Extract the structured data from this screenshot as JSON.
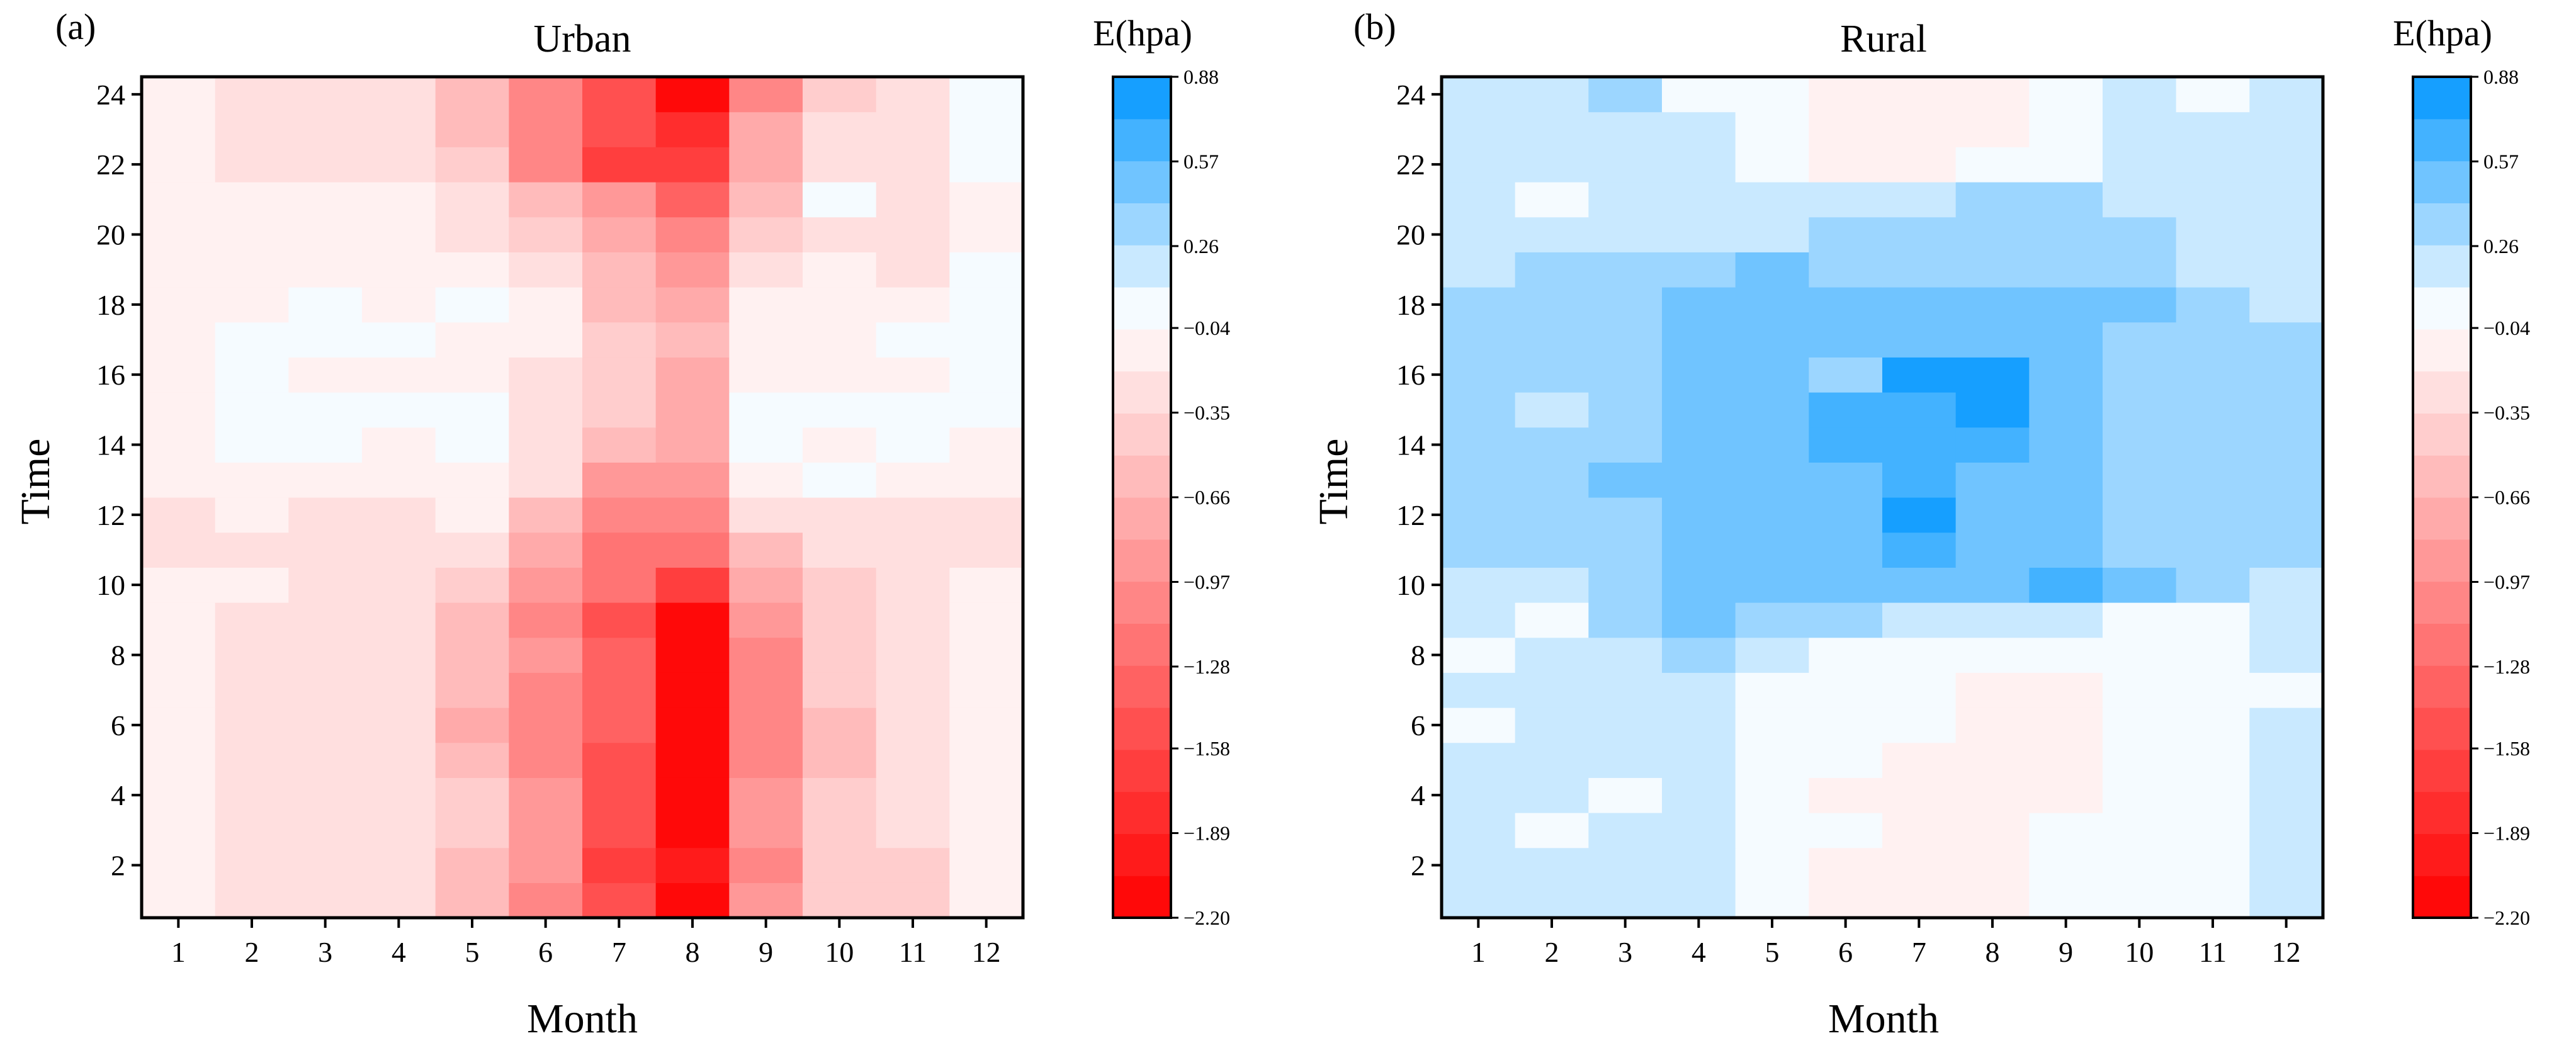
{
  "chart_data": [
    {
      "type": "heatmap",
      "panel_label": "(a)",
      "title": "Urban",
      "xlabel": "Month",
      "ylabel": "Time",
      "x_categories": [
        1,
        2,
        3,
        4,
        5,
        6,
        7,
        8,
        9,
        10,
        11,
        12
      ],
      "y_range": [
        0.5,
        24.5
      ],
      "y_ticks": [
        2,
        4,
        6,
        8,
        10,
        12,
        14,
        16,
        18,
        20,
        22,
        24
      ],
      "colorbar": {
        "title": "E(hpa)",
        "range": [
          -2.2,
          0.88
        ],
        "tick_values": [
          0.88,
          0.57,
          0.26,
          -0.04,
          -0.35,
          -0.66,
          -0.97,
          -1.28,
          -1.58,
          -1.89,
          -2.2
        ],
        "tick_labels": [
          "0.88",
          "0.57",
          "0.26",
          "−0.04",
          "−0.35",
          "−0.66",
          "−0.97",
          "−1.28",
          "−1.58",
          "−1.89",
          "−2.20"
        ],
        "low_color": "#ff0000",
        "mid_color": "#ffffff",
        "high_color": "#0096ff"
      },
      "z_note": "rows are hours 1..24, columns are months 1..12",
      "z": [
        [
          -0.15,
          -0.2,
          -0.3,
          -0.35,
          -0.6,
          -1.0,
          -1.5,
          -2.1,
          -0.9,
          -0.5,
          -0.4,
          -0.1
        ],
        [
          -0.15,
          -0.2,
          -0.25,
          -0.35,
          -0.55,
          -0.95,
          -1.6,
          -2.0,
          -1.0,
          -0.5,
          -0.4,
          -0.1
        ],
        [
          -0.15,
          -0.2,
          -0.25,
          -0.35,
          -0.5,
          -0.9,
          -1.55,
          -2.05,
          -0.95,
          -0.45,
          -0.35,
          -0.1
        ],
        [
          -0.15,
          -0.2,
          -0.25,
          -0.35,
          -0.5,
          -0.95,
          -1.5,
          -2.2,
          -0.95,
          -0.45,
          -0.35,
          -0.1
        ],
        [
          -0.15,
          -0.2,
          -0.25,
          -0.3,
          -0.65,
          -1.0,
          -1.45,
          -2.1,
          -1.0,
          -0.55,
          -0.35,
          -0.1
        ],
        [
          -0.15,
          -0.2,
          -0.25,
          -0.3,
          -0.7,
          -1.0,
          -1.4,
          -2.05,
          -1.0,
          -0.55,
          -0.35,
          -0.1
        ],
        [
          -0.15,
          -0.2,
          -0.25,
          -0.3,
          -0.65,
          -1.0,
          -1.4,
          -2.1,
          -1.0,
          -0.5,
          -0.35,
          -0.1
        ],
        [
          -0.15,
          -0.2,
          -0.25,
          -0.3,
          -0.55,
          -0.95,
          -1.35,
          -2.15,
          -1.0,
          -0.5,
          -0.35,
          -0.1
        ],
        [
          -0.15,
          -0.2,
          -0.25,
          -0.3,
          -0.6,
          -1.05,
          -1.5,
          -2.1,
          -0.95,
          -0.5,
          -0.3,
          -0.05
        ],
        [
          -0.15,
          -0.15,
          -0.2,
          -0.25,
          -0.4,
          -0.85,
          -1.2,
          -1.6,
          -0.7,
          -0.4,
          -0.3,
          -0.1
        ],
        [
          -0.2,
          -0.2,
          -0.2,
          -0.3,
          -0.25,
          -0.7,
          -1.15,
          -1.2,
          -0.55,
          -0.25,
          -0.25,
          -0.2
        ],
        [
          -0.25,
          -0.15,
          -0.2,
          -0.2,
          -0.1,
          -0.55,
          -1.05,
          -1.1,
          -0.2,
          -0.2,
          -0.2,
          -0.2
        ],
        [
          -0.15,
          -0.1,
          -0.1,
          -0.1,
          -0.05,
          -0.35,
          -0.9,
          -0.85,
          -0.05,
          0.0,
          -0.1,
          -0.1
        ],
        [
          -0.15,
          0.0,
          0.0,
          -0.1,
          0.0,
          -0.2,
          -0.55,
          -0.75,
          0.0,
          -0.1,
          0.0,
          -0.1
        ],
        [
          -0.15,
          0.0,
          0.0,
          0.0,
          0.0,
          -0.3,
          -0.5,
          -0.7,
          0.0,
          0.0,
          0.0,
          0.0
        ],
        [
          -0.15,
          0.0,
          -0.1,
          -0.1,
          -0.1,
          -0.2,
          -0.45,
          -0.7,
          -0.1,
          -0.1,
          -0.1,
          0.0
        ],
        [
          -0.15,
          0.0,
          0.0,
          0.0,
          -0.1,
          -0.15,
          -0.5,
          -0.65,
          -0.05,
          -0.05,
          0.0,
          0.0
        ],
        [
          -0.15,
          -0.1,
          0.0,
          -0.1,
          0.0,
          -0.15,
          -0.55,
          -0.7,
          -0.05,
          -0.05,
          -0.1,
          0.0
        ],
        [
          -0.15,
          -0.1,
          -0.1,
          -0.1,
          -0.1,
          -0.25,
          -0.6,
          -0.85,
          -0.35,
          -0.1,
          -0.25,
          0.0
        ],
        [
          -0.15,
          -0.1,
          -0.15,
          -0.05,
          -0.25,
          -0.45,
          -0.75,
          -1.1,
          -0.5,
          -0.2,
          -0.25,
          -0.1
        ],
        [
          -0.15,
          -0.1,
          -0.1,
          -0.15,
          -0.3,
          -0.65,
          -0.9,
          -1.3,
          -0.55,
          0.0,
          -0.3,
          -0.1
        ],
        [
          -0.15,
          -0.2,
          -0.2,
          -0.25,
          -0.5,
          -1.0,
          -1.65,
          -1.7,
          -0.7,
          -0.3,
          -0.35,
          0.0
        ],
        [
          -0.15,
          -0.2,
          -0.2,
          -0.3,
          -0.55,
          -1.05,
          -1.55,
          -1.8,
          -0.75,
          -0.35,
          -0.35,
          0.0
        ],
        [
          -0.15,
          -0.2,
          -0.2,
          -0.3,
          -0.6,
          -1.05,
          -1.55,
          -2.05,
          -1.0,
          -0.4,
          -0.35,
          0.0
        ]
      ]
    },
    {
      "type": "heatmap",
      "panel_label": "(b)",
      "title": "Rural",
      "xlabel": "Month",
      "ylabel": "Time",
      "x_categories": [
        1,
        2,
        3,
        4,
        5,
        6,
        7,
        8,
        9,
        10,
        11,
        12
      ],
      "y_range": [
        0.5,
        24.5
      ],
      "y_ticks": [
        2,
        4,
        6,
        8,
        10,
        12,
        14,
        16,
        18,
        20,
        22,
        24
      ],
      "colorbar": {
        "title": "E(hpa)",
        "range": [
          -2.2,
          0.88
        ],
        "tick_values": [
          0.88,
          0.57,
          0.26,
          -0.04,
          -0.35,
          -0.66,
          -0.97,
          -1.28,
          -1.58,
          -1.89,
          -2.2
        ],
        "tick_labels": [
          "0.88",
          "0.57",
          "0.26",
          "−0.04",
          "−0.35",
          "−0.66",
          "−0.97",
          "−1.28",
          "−1.58",
          "−1.89",
          "−2.20"
        ],
        "low_color": "#ff0000",
        "mid_color": "#ffffff",
        "high_color": "#0096ff"
      },
      "z_note": "rows are hours 1..24, columns are months 1..12",
      "z": [
        [
          0.2,
          0.2,
          0.2,
          0.2,
          0.05,
          -0.1,
          -0.1,
          -0.1,
          0.0,
          0.1,
          0.1,
          0.2
        ],
        [
          0.2,
          0.2,
          0.2,
          0.2,
          0.0,
          -0.1,
          -0.1,
          -0.1,
          0.0,
          0.1,
          0.1,
          0.2
        ],
        [
          0.2,
          0.0,
          0.2,
          0.2,
          0.0,
          0.0,
          -0.1,
          -0.1,
          0.0,
          0.0,
          0.1,
          0.2
        ],
        [
          0.2,
          0.2,
          0.1,
          0.2,
          0.0,
          -0.1,
          -0.1,
          -0.1,
          -0.05,
          0.1,
          0.1,
          0.2
        ],
        [
          0.2,
          0.2,
          0.2,
          0.2,
          0.0,
          0.0,
          -0.1,
          -0.1,
          -0.05,
          0.0,
          0.1,
          0.2
        ],
        [
          0.1,
          0.2,
          0.2,
          0.2,
          0.1,
          0.0,
          0.0,
          -0.1,
          -0.05,
          0.0,
          0.0,
          0.2
        ],
        [
          0.2,
          0.2,
          0.2,
          0.2,
          0.1,
          0.1,
          0.0,
          -0.1,
          -0.05,
          0.0,
          0.0,
          0.1
        ],
        [
          0.1,
          0.2,
          0.2,
          0.4,
          0.25,
          0.1,
          0.1,
          0.0,
          0.0,
          0.0,
          0.0,
          0.2
        ],
        [
          0.2,
          0.1,
          0.3,
          0.45,
          0.35,
          0.3,
          0.2,
          0.25,
          0.15,
          0.1,
          0.0,
          0.2
        ],
        [
          0.2,
          0.25,
          0.3,
          0.55,
          0.55,
          0.55,
          0.55,
          0.45,
          0.6,
          0.5,
          0.3,
          0.2
        ],
        [
          0.3,
          0.4,
          0.3,
          0.55,
          0.45,
          0.55,
          0.6,
          0.45,
          0.45,
          0.35,
          0.35,
          0.3
        ],
        [
          0.3,
          0.3,
          0.4,
          0.45,
          0.55,
          0.55,
          0.75,
          0.55,
          0.5,
          0.35,
          0.3,
          0.3
        ],
        [
          0.3,
          0.3,
          0.5,
          0.55,
          0.55,
          0.55,
          0.6,
          0.55,
          0.45,
          0.35,
          0.3,
          0.3
        ],
        [
          0.3,
          0.35,
          0.4,
          0.45,
          0.55,
          0.6,
          0.7,
          0.6,
          0.55,
          0.35,
          0.3,
          0.3
        ],
        [
          0.3,
          0.2,
          0.4,
          0.45,
          0.55,
          0.6,
          0.65,
          0.75,
          0.55,
          0.35,
          0.3,
          0.3
        ],
        [
          0.3,
          0.3,
          0.4,
          0.45,
          0.55,
          0.4,
          0.75,
          0.8,
          0.5,
          0.35,
          0.3,
          0.3
        ],
        [
          0.3,
          0.3,
          0.3,
          0.45,
          0.55,
          0.45,
          0.5,
          0.5,
          0.5,
          0.35,
          0.3,
          0.3
        ],
        [
          0.3,
          0.3,
          0.4,
          0.5,
          0.55,
          0.5,
          0.55,
          0.55,
          0.55,
          0.45,
          0.35,
          0.2
        ],
        [
          0.2,
          0.3,
          0.35,
          0.4,
          0.45,
          0.4,
          0.4,
          0.4,
          0.4,
          0.35,
          0.2,
          0.2
        ],
        [
          0.2,
          0.2,
          0.2,
          0.2,
          0.2,
          0.3,
          0.3,
          0.35,
          0.3,
          0.3,
          0.2,
          0.2
        ],
        [
          0.2,
          0.1,
          0.2,
          0.25,
          0.25,
          0.2,
          0.25,
          0.35,
          0.3,
          0.25,
          0.2,
          0.2
        ],
        [
          0.2,
          0.2,
          0.2,
          0.2,
          0.05,
          -0.1,
          -0.15,
          0.0,
          0.1,
          0.2,
          0.2,
          0.2
        ],
        [
          0.2,
          0.2,
          0.2,
          0.2,
          0.1,
          -0.1,
          -0.15,
          -0.05,
          0.1,
          0.2,
          0.2,
          0.2
        ],
        [
          0.2,
          0.2,
          0.3,
          0.1,
          0.1,
          -0.1,
          -0.1,
          -0.05,
          0.0,
          0.2,
          0.1,
          0.2
        ]
      ]
    }
  ]
}
